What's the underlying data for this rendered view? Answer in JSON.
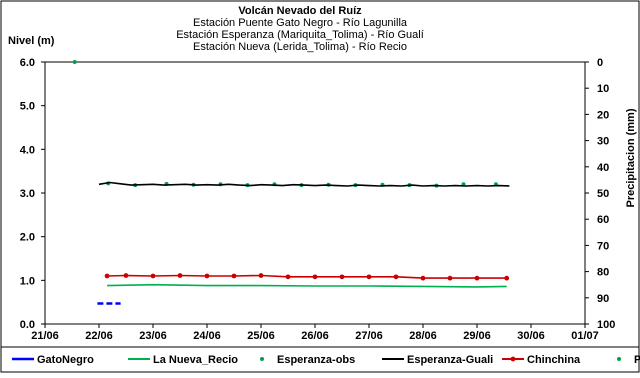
{
  "chart_data": {
    "type": "line",
    "title_lines": [
      "Volcán Nevado del Ruíz",
      "Estación Puente Gato Negro - Río Lagunilla",
      "Estación Esperanza (Mariquita_Tolima) - Río Gualí",
      "Estación Nueva (Lerida_Tolima) - Río Recio"
    ],
    "ylabel": "Nivel (m)",
    "y2label": "Precipitacion (mm)",
    "xlim": [
      0,
      10
    ],
    "ylim": [
      0,
      6
    ],
    "y2lim": [
      0,
      100
    ],
    "x_ticks": [
      {
        "x": 0,
        "label": "21/06"
      },
      {
        "x": 1,
        "label": "22/06"
      },
      {
        "x": 2,
        "label": "23/06"
      },
      {
        "x": 3,
        "label": "24/06"
      },
      {
        "x": 4,
        "label": "25/06"
      },
      {
        "x": 5,
        "label": "26/06"
      },
      {
        "x": 6,
        "label": "27/06"
      },
      {
        "x": 7,
        "label": "28/06"
      },
      {
        "x": 8,
        "label": "29/06"
      },
      {
        "x": 9,
        "label": "30/06"
      },
      {
        "x": 10,
        "label": "01/07"
      }
    ],
    "y_ticks": [
      {
        "y": 0,
        "label": "0.0"
      },
      {
        "y": 1,
        "label": "1.0"
      },
      {
        "y": 2,
        "label": "2.0"
      },
      {
        "y": 3,
        "label": "3.0"
      },
      {
        "y": 4,
        "label": "4.0"
      },
      {
        "y": 5,
        "label": "5.0"
      },
      {
        "y": 6,
        "label": "6.0"
      }
    ],
    "y2_ticks": [
      {
        "y": 0,
        "label": "0"
      },
      {
        "y": 10,
        "label": "10"
      },
      {
        "y": 20,
        "label": "20"
      },
      {
        "y": 30,
        "label": "30"
      },
      {
        "y": 40,
        "label": "40"
      },
      {
        "y": 50,
        "label": "50"
      },
      {
        "y": 60,
        "label": "60"
      },
      {
        "y": 70,
        "label": "70"
      },
      {
        "y": 80,
        "label": "80"
      },
      {
        "y": 90,
        "label": "90"
      },
      {
        "y": 100,
        "label": "100"
      }
    ],
    "series": [
      {
        "name": "GatoNegro",
        "color": "#0000ff",
        "style": "dashed",
        "axis": "left",
        "x": [
          0.97,
          1.2,
          1.4
        ],
        "y": [
          0.47,
          0.47,
          0.47
        ]
      },
      {
        "name": "La Nueva_Recio",
        "color": "#00b050",
        "style": "line",
        "axis": "left",
        "x": [
          1.15,
          2.0,
          3.0,
          4.0,
          5.0,
          6.0,
          7.0,
          8.0,
          8.55
        ],
        "y": [
          0.88,
          0.9,
          0.88,
          0.88,
          0.87,
          0.87,
          0.86,
          0.85,
          0.86
        ]
      },
      {
        "name": "Esperanza-obs",
        "color": "#00a050",
        "style": "markers",
        "axis": "left",
        "x": [
          1.17,
          1.67,
          2.25,
          2.75,
          3.25,
          3.75,
          4.25,
          4.75,
          5.25,
          5.75,
          6.25,
          6.75,
          7.25,
          7.75,
          8.35
        ],
        "y": [
          3.22,
          3.18,
          3.21,
          3.19,
          3.2,
          3.18,
          3.2,
          3.18,
          3.19,
          3.18,
          3.19,
          3.18,
          3.17,
          3.2,
          3.2
        ]
      },
      {
        "name": "Esperanza-Guali",
        "color": "#000000",
        "style": "line",
        "axis": "left",
        "x": [
          1.0,
          1.2,
          1.4,
          1.6,
          1.8,
          2.0,
          2.2,
          2.4,
          2.6,
          2.8,
          3.0,
          3.2,
          3.4,
          3.6,
          3.8,
          4.0,
          4.2,
          4.4,
          4.6,
          4.8,
          5.0,
          5.2,
          5.4,
          5.6,
          5.8,
          6.0,
          6.2,
          6.4,
          6.6,
          6.8,
          7.0,
          7.2,
          7.4,
          7.6,
          7.8,
          8.0,
          8.2,
          8.4,
          8.6
        ],
        "y": [
          3.2,
          3.24,
          3.21,
          3.18,
          3.19,
          3.2,
          3.18,
          3.19,
          3.2,
          3.18,
          3.19,
          3.18,
          3.2,
          3.18,
          3.17,
          3.19,
          3.18,
          3.17,
          3.19,
          3.18,
          3.17,
          3.18,
          3.17,
          3.16,
          3.18,
          3.17,
          3.16,
          3.17,
          3.16,
          3.18,
          3.16,
          3.17,
          3.16,
          3.17,
          3.16,
          3.17,
          3.16,
          3.17,
          3.16
        ]
      },
      {
        "name": "Chinchina",
        "color": "#cc0000",
        "style": "line-markers",
        "axis": "left",
        "x": [
          1.15,
          1.5,
          2.0,
          2.5,
          3.0,
          3.5,
          4.0,
          4.5,
          5.0,
          5.5,
          6.0,
          6.5,
          7.0,
          7.5,
          8.0,
          8.55
        ],
        "y": [
          1.1,
          1.11,
          1.1,
          1.11,
          1.1,
          1.1,
          1.11,
          1.08,
          1.08,
          1.08,
          1.08,
          1.08,
          1.05,
          1.05,
          1.05,
          1.05
        ]
      },
      {
        "name": "P",
        "color": "#00a050",
        "style": "markers",
        "axis": "right",
        "x": [
          0.55
        ],
        "y": [
          0
        ]
      }
    ]
  }
}
